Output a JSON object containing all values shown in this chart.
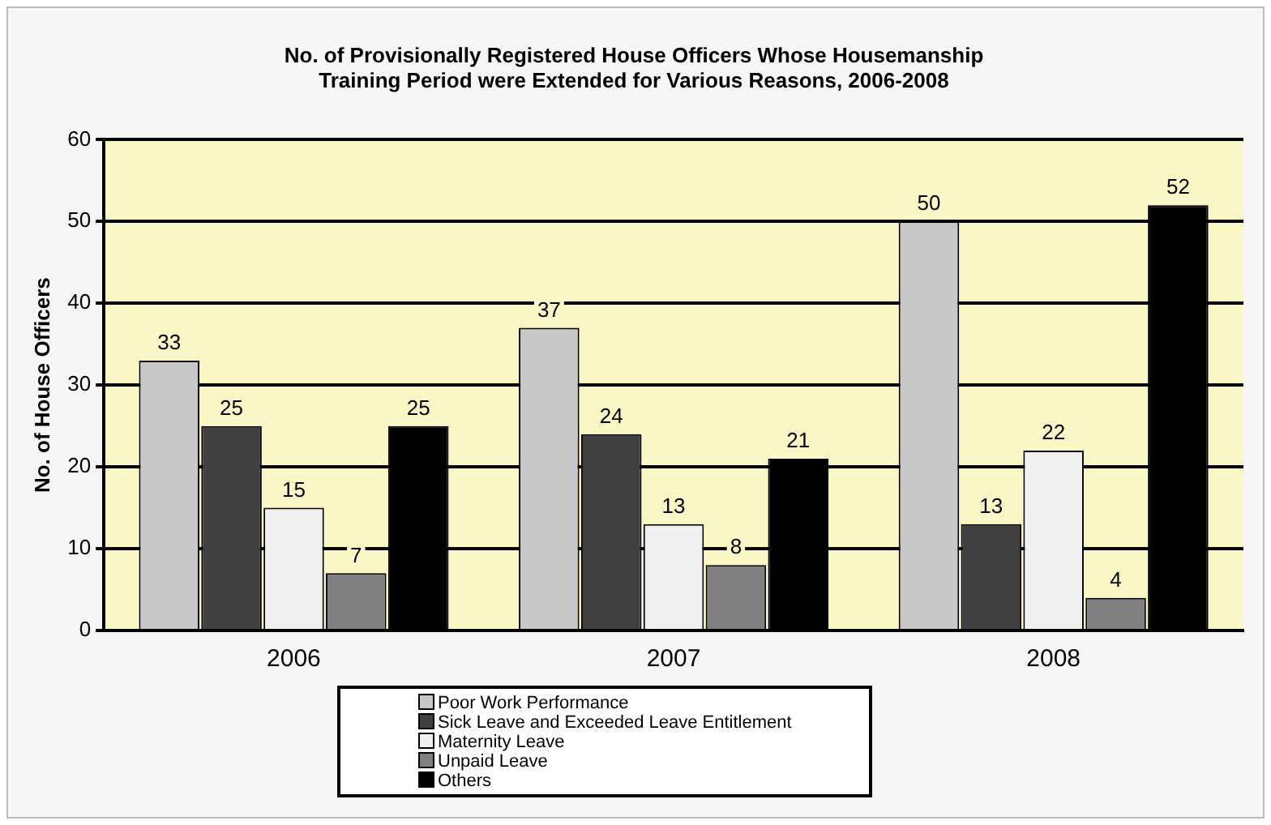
{
  "chart_data": {
    "type": "bar",
    "title": "No. of Provisionally Registered House Officers Whose Housemanship Training Period were Extended for Various Reasons, 2006-2008",
    "ylabel": "No. of House Officers",
    "categories": [
      "2006",
      "2007",
      "2008"
    ],
    "series": [
      {
        "name": "Poor Work Performance",
        "color": "#c8c8c8",
        "values": [
          33,
          37,
          50
        ]
      },
      {
        "name": "Sick Leave and Exceeded Leave Entitlement",
        "color": "#404040",
        "values": [
          25,
          24,
          13
        ]
      },
      {
        "name": "Maternity Leave",
        "color": "#f0f0f0",
        "values": [
          15,
          13,
          22
        ]
      },
      {
        "name": "Unpaid Leave",
        "color": "#808080",
        "values": [
          7,
          8,
          4
        ]
      },
      {
        "name": "Others",
        "color": "#000000",
        "values": [
          25,
          21,
          52
        ]
      }
    ],
    "ylim": [
      0,
      60
    ],
    "yticks": [
      0,
      10,
      20,
      30,
      40,
      50,
      60
    ],
    "grid": "y",
    "legend": "bottom",
    "data_labels": true
  }
}
